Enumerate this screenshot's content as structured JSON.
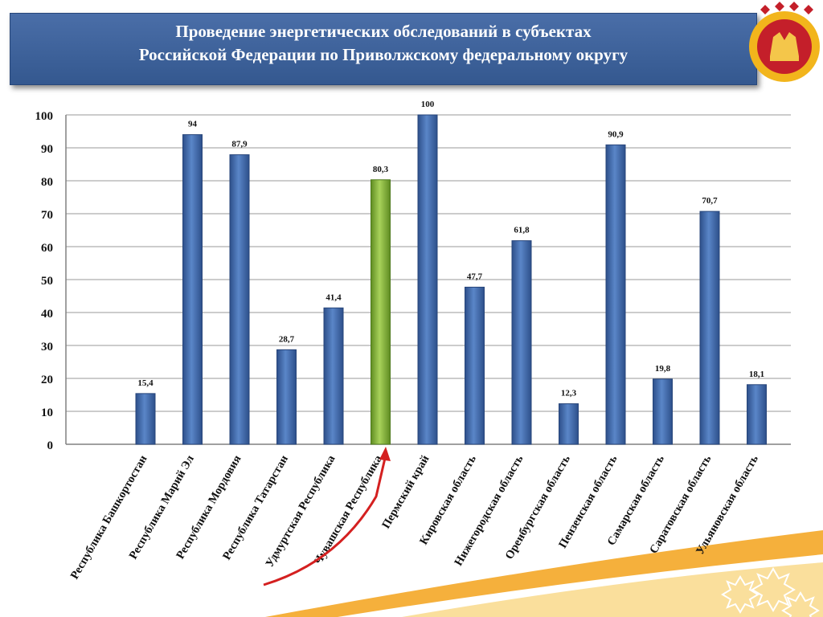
{
  "title": {
    "line1": "Проведение энергетических обследований в субъектах",
    "line2": "Российской Федерации по Приволжскому федеральному округу"
  },
  "colors": {
    "banner": "#3e639d",
    "bar": "#3f6bb0",
    "highlight_bar": "#8fbf3f",
    "arrow": "#d42020"
  },
  "emblem": {
    "icon": "chuvash-emblem-icon"
  },
  "chart_data": {
    "type": "bar",
    "categories": [
      "Республика Башкортостан",
      "Республика Марий Эл",
      "Республика Мордовия",
      "Республика Татарстан",
      "Удмуртская Республика",
      "Чувашская Республика",
      "Пермский край",
      "Кировская область",
      "Нижегородская область",
      "Оренбургская область",
      "Пензенская область",
      "Самарская область",
      "Саратовская область",
      "Ульяновская область"
    ],
    "values": [
      15.4,
      94,
      87.9,
      28.7,
      41.4,
      80.3,
      100,
      47.7,
      61.8,
      12.3,
      90.9,
      19.8,
      70.7,
      18.1
    ],
    "value_labels": [
      "15,4",
      "94",
      "87,9",
      "28,7",
      "41,4",
      "80,3",
      "100",
      "47,7",
      "61,8",
      "12,3",
      "90,9",
      "19,8",
      "70,7",
      "18,1"
    ],
    "highlight_index": 5,
    "ylim": [
      0,
      100
    ],
    "yticks": [
      0,
      10,
      20,
      30,
      40,
      50,
      60,
      70,
      80,
      90,
      100
    ],
    "grid": true,
    "legend": "none",
    "title": "",
    "xlabel": "",
    "ylabel": ""
  }
}
